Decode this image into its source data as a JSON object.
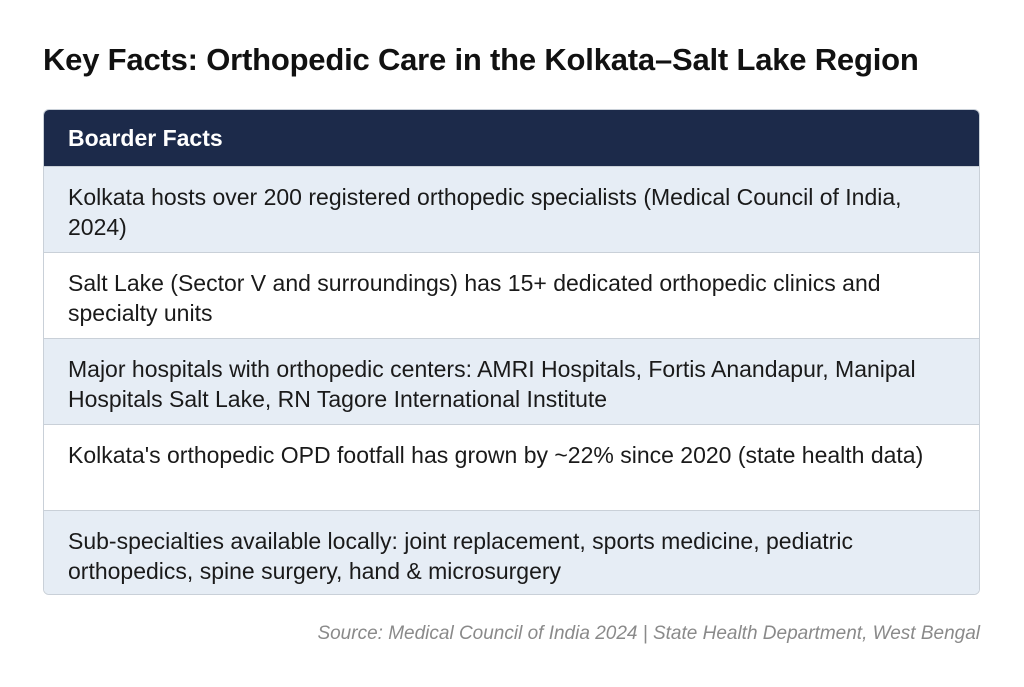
{
  "title": "Key Facts: Orthopedic Care in the Kolkata–Salt Lake Region",
  "table": {
    "header": "Boarder Facts",
    "rows": [
      "Kolkata hosts over 200 registered orthopedic specialists (Medical Council of India, 2024)",
      "Salt Lake (Sector V and surroundings) has 15+ dedicated orthopedic clinics and specialty units",
      "Major hospitals with orthopedic centers: AMRI Hospitals, Fortis Anandapur, Manipal Hospitals Salt Lake, RN Tagore International Institute",
      "Kolkata's orthopedic OPD footfall has grown by ~22% since 2020 (state health data)",
      "Sub-specialties available locally: joint replacement, sports medicine, pediatric orthopedics, spine surgery, hand & microsurgery"
    ]
  },
  "source": "Source: Medical Council of India 2024 | State Health Department, West Bengal",
  "colors": {
    "header_bg": "#1c2a4a",
    "row_alt_bg": "#e6edf5",
    "row_plain_bg": "#ffffff",
    "border": "#c9d0d8",
    "source_text": "#8a8a8a"
  }
}
